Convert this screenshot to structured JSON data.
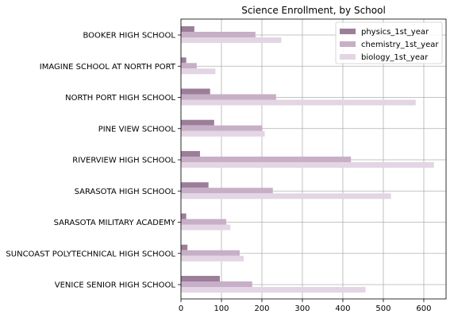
{
  "chart_data": {
    "type": "bar",
    "orientation": "horizontal",
    "title": "Science Enrollment, by School",
    "xlabel": "",
    "ylabel": "",
    "xlim": [
      0,
      655
    ],
    "xticks": [
      0,
      100,
      200,
      300,
      400,
      500,
      600
    ],
    "grid": true,
    "legend_position": "top-right",
    "categories": [
      "BOOKER HIGH SCHOOL",
      "IMAGINE SCHOOL AT NORTH PORT",
      "NORTH PORT HIGH SCHOOL",
      "PINE VIEW SCHOOL",
      "RIVERVIEW HIGH SCHOOL",
      "SARASOTA HIGH SCHOOL",
      "SARASOTA MILITARY ACADEMY",
      "SUNCOAST POLYTECHNICAL HIGH SCHOOL",
      "VENICE SENIOR HIGH SCHOOL"
    ],
    "series": [
      {
        "name": "physics_1st_year",
        "color": "#9b7f99",
        "values": [
          33,
          13,
          72,
          82,
          47,
          68,
          13,
          16,
          96
        ]
      },
      {
        "name": "chemistry_1st_year",
        "color": "#c7afc7",
        "values": [
          184,
          39,
          235,
          201,
          420,
          227,
          112,
          145,
          176
        ]
      },
      {
        "name": "biology_1st_year",
        "color": "#e3d5e3",
        "values": [
          248,
          85,
          580,
          207,
          625,
          519,
          122,
          155,
          456
        ]
      }
    ]
  }
}
